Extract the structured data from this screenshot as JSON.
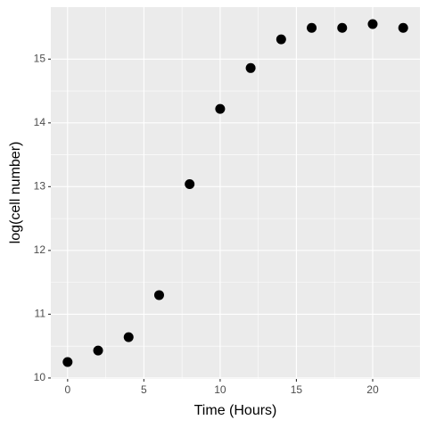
{
  "chart_data": {
    "type": "scatter",
    "x_label": "Time (Hours)",
    "y_label": "log(cell number)",
    "x": [
      0,
      2,
      4,
      6,
      8,
      10,
      12,
      14,
      16,
      18,
      20,
      22
    ],
    "values": [
      10.25,
      10.43,
      10.64,
      11.3,
      13.04,
      14.22,
      14.86,
      15.31,
      15.49,
      15.49,
      15.55,
      15.49
    ],
    "color": "#000000",
    "xlim": [
      -1.1,
      23.1
    ],
    "xticks": [
      0,
      5,
      10,
      15,
      20
    ],
    "ylim": [
      9.985,
      15.815
    ],
    "yticks": [
      10,
      11,
      12,
      13,
      14,
      15
    ],
    "grid": true
  }
}
